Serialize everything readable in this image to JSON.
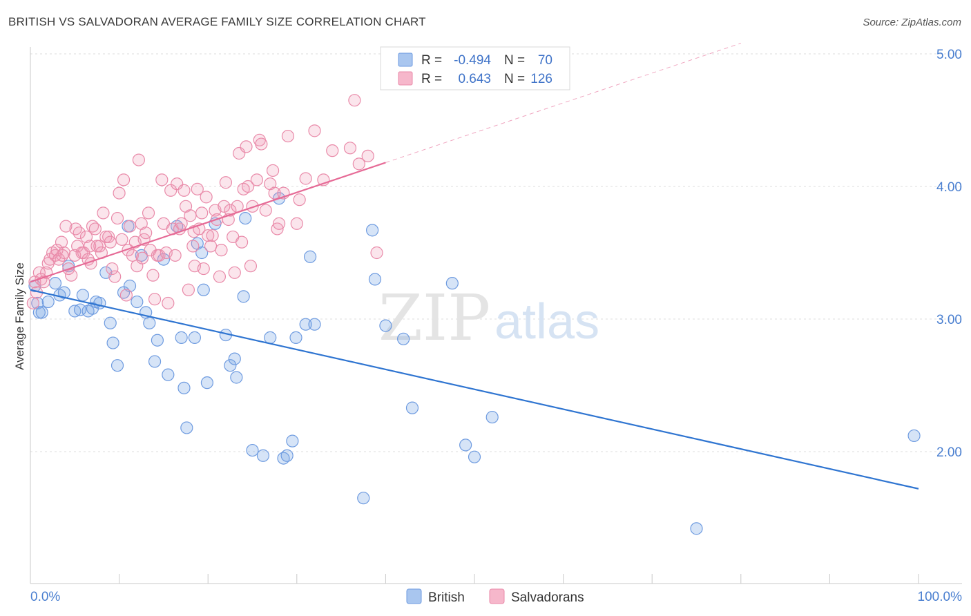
{
  "title": "BRITISH VS SALVADORAN AVERAGE FAMILY SIZE CORRELATION CHART",
  "source": "Source: ZipAtlas.com",
  "watermark": {
    "zip": "ZIP",
    "atlas": "atlas"
  },
  "legend": {
    "r_label": "R =",
    "n_label": "N =",
    "rows": [
      {
        "r": "-0.494",
        "n": "70",
        "color": "#a9c6ef",
        "stroke": "#6e9be0"
      },
      {
        "r": "0.643",
        "n": "126",
        "color": "#f6b7cb",
        "stroke": "#e98aa9"
      }
    ]
  },
  "bottom_legend": [
    {
      "label": "British",
      "color": "#a9c6ef",
      "stroke": "#6e9be0"
    },
    {
      "label": "Salvadorans",
      "color": "#f6b7cb",
      "stroke": "#e98aa9"
    }
  ],
  "colors": {
    "blue_line": "#2f75d1",
    "pink_line": "#e66a96",
    "blue_fill": "rgba(120,164,228,0.30)",
    "blue_stroke": "#6e9be0",
    "pink_fill": "rgba(240,150,180,0.25)",
    "pink_stroke": "#e98aa9",
    "grid": "#dcdcdc"
  },
  "chart_data": {
    "type": "scatter",
    "title": "BRITISH VS SALVADORAN AVERAGE FAMILY SIZE CORRELATION CHART",
    "xlabel": "",
    "ylabel": "Average Family Size",
    "xlim": [
      0,
      100
    ],
    "ylim": [
      1.0,
      5.1
    ],
    "x_tick_labels": [
      "0.0%",
      "100.0%"
    ],
    "y_ticks": [
      2.0,
      3.0,
      4.0,
      5.0
    ],
    "y_tick_labels": [
      "2.00",
      "3.00",
      "4.00",
      "5.00"
    ],
    "grid": true,
    "legend_position": "top-center",
    "series": [
      {
        "name": "British",
        "r": -0.494,
        "n": 70,
        "trend": {
          "x": [
            0,
            100
          ],
          "y": [
            3.22,
            1.72
          ]
        },
        "points": [
          [
            0.5,
            3.25
          ],
          [
            0.8,
            3.12
          ],
          [
            1.0,
            3.05
          ],
          [
            1.3,
            3.05
          ],
          [
            2.0,
            3.13
          ],
          [
            2.8,
            3.27
          ],
          [
            3.3,
            3.18
          ],
          [
            3.8,
            3.2
          ],
          [
            4.3,
            3.4
          ],
          [
            5.0,
            3.06
          ],
          [
            5.6,
            3.07
          ],
          [
            5.9,
            3.18
          ],
          [
            6.5,
            3.06
          ],
          [
            7.0,
            3.08
          ],
          [
            7.4,
            3.13
          ],
          [
            7.8,
            3.12
          ],
          [
            8.5,
            3.35
          ],
          [
            9.0,
            2.97
          ],
          [
            9.3,
            2.82
          ],
          [
            9.8,
            2.65
          ],
          [
            10.5,
            3.2
          ],
          [
            11.0,
            3.7
          ],
          [
            11.2,
            3.25
          ],
          [
            12.0,
            3.13
          ],
          [
            12.5,
            3.48
          ],
          [
            13.0,
            3.05
          ],
          [
            13.4,
            2.97
          ],
          [
            14.0,
            2.68
          ],
          [
            14.3,
            2.84
          ],
          [
            15.0,
            3.45
          ],
          [
            15.5,
            2.58
          ],
          [
            16.5,
            3.7
          ],
          [
            17.0,
            2.86
          ],
          [
            17.3,
            2.48
          ],
          [
            17.6,
            2.18
          ],
          [
            18.5,
            2.86
          ],
          [
            18.8,
            3.57
          ],
          [
            19.3,
            3.5
          ],
          [
            19.5,
            3.22
          ],
          [
            19.9,
            2.52
          ],
          [
            20.8,
            3.72
          ],
          [
            22.0,
            2.88
          ],
          [
            22.5,
            2.65
          ],
          [
            23.0,
            2.7
          ],
          [
            23.2,
            2.56
          ],
          [
            24.0,
            3.17
          ],
          [
            24.2,
            3.76
          ],
          [
            25.0,
            2.01
          ],
          [
            26.2,
            1.97
          ],
          [
            27.0,
            2.86
          ],
          [
            28.0,
            3.91
          ],
          [
            28.5,
            1.95
          ],
          [
            28.9,
            1.97
          ],
          [
            29.5,
            2.08
          ],
          [
            29.9,
            2.86
          ],
          [
            31.0,
            2.96
          ],
          [
            31.5,
            3.47
          ],
          [
            32.0,
            2.96
          ],
          [
            37.5,
            1.65
          ],
          [
            38.5,
            3.67
          ],
          [
            38.8,
            3.3
          ],
          [
            40.0,
            2.95
          ],
          [
            42.0,
            2.85
          ],
          [
            43.0,
            2.33
          ],
          [
            47.5,
            3.27
          ],
          [
            49.0,
            2.05
          ],
          [
            50.0,
            1.96
          ],
          [
            52.0,
            2.26
          ],
          [
            75.0,
            1.42
          ],
          [
            99.5,
            2.12
          ]
        ]
      },
      {
        "name": "Salvadorans",
        "r": 0.643,
        "n": 126,
        "trend": {
          "x": [
            0,
            40
          ],
          "y": [
            3.28,
            4.18
          ]
        },
        "points": [
          [
            0.3,
            3.12
          ],
          [
            0.5,
            3.28
          ],
          [
            0.7,
            3.2
          ],
          [
            1.0,
            3.35
          ],
          [
            1.2,
            3.3
          ],
          [
            1.5,
            3.28
          ],
          [
            1.8,
            3.35
          ],
          [
            2.0,
            3.42
          ],
          [
            2.2,
            3.45
          ],
          [
            2.5,
            3.5
          ],
          [
            2.8,
            3.48
          ],
          [
            3.0,
            3.52
          ],
          [
            3.2,
            3.45
          ],
          [
            3.5,
            3.58
          ],
          [
            3.8,
            3.5
          ],
          [
            4.0,
            3.7
          ],
          [
            4.3,
            3.38
          ],
          [
            4.6,
            3.33
          ],
          [
            5.0,
            3.48
          ],
          [
            5.3,
            3.55
          ],
          [
            5.5,
            3.65
          ],
          [
            5.8,
            3.5
          ],
          [
            6.0,
            3.5
          ],
          [
            6.3,
            3.62
          ],
          [
            6.5,
            3.45
          ],
          [
            6.8,
            3.42
          ],
          [
            7.0,
            3.7
          ],
          [
            7.3,
            3.68
          ],
          [
            7.5,
            3.55
          ],
          [
            7.8,
            3.55
          ],
          [
            8.0,
            3.5
          ],
          [
            8.2,
            3.8
          ],
          [
            8.5,
            3.62
          ],
          [
            8.8,
            3.62
          ],
          [
            9.0,
            3.58
          ],
          [
            9.2,
            3.38
          ],
          [
            9.5,
            3.32
          ],
          [
            9.8,
            3.76
          ],
          [
            10.0,
            3.95
          ],
          [
            10.3,
            3.6
          ],
          [
            10.5,
            4.05
          ],
          [
            10.8,
            3.18
          ],
          [
            11.0,
            3.52
          ],
          [
            11.2,
            3.7
          ],
          [
            11.5,
            3.48
          ],
          [
            11.8,
            3.58
          ],
          [
            12.0,
            3.4
          ],
          [
            12.2,
            4.2
          ],
          [
            12.5,
            3.72
          ],
          [
            12.8,
            3.6
          ],
          [
            13.0,
            3.65
          ],
          [
            13.3,
            3.8
          ],
          [
            13.5,
            3.52
          ],
          [
            13.8,
            3.33
          ],
          [
            14.0,
            3.15
          ],
          [
            14.3,
            3.48
          ],
          [
            14.5,
            3.48
          ],
          [
            14.8,
            4.05
          ],
          [
            15.0,
            3.72
          ],
          [
            15.3,
            3.5
          ],
          [
            15.5,
            3.12
          ],
          [
            15.8,
            3.97
          ],
          [
            16.0,
            3.68
          ],
          [
            16.3,
            3.48
          ],
          [
            16.5,
            4.02
          ],
          [
            16.8,
            3.68
          ],
          [
            17.0,
            3.72
          ],
          [
            17.3,
            3.97
          ],
          [
            17.5,
            3.85
          ],
          [
            17.8,
            3.22
          ],
          [
            18.0,
            3.78
          ],
          [
            18.3,
            3.55
          ],
          [
            18.5,
            3.4
          ],
          [
            18.8,
            3.98
          ],
          [
            19.0,
            3.68
          ],
          [
            19.3,
            3.8
          ],
          [
            19.5,
            3.38
          ],
          [
            19.8,
            3.92
          ],
          [
            20.0,
            3.63
          ],
          [
            20.3,
            3.55
          ],
          [
            20.5,
            3.63
          ],
          [
            20.8,
            3.82
          ],
          [
            21.0,
            3.75
          ],
          [
            21.3,
            3.32
          ],
          [
            21.5,
            3.52
          ],
          [
            21.8,
            3.85
          ],
          [
            22.0,
            4.03
          ],
          [
            22.3,
            3.75
          ],
          [
            22.5,
            3.82
          ],
          [
            22.8,
            3.62
          ],
          [
            23.0,
            3.35
          ],
          [
            23.3,
            3.85
          ],
          [
            23.5,
            4.25
          ],
          [
            23.8,
            3.58
          ],
          [
            24.0,
            3.98
          ],
          [
            24.3,
            4.3
          ],
          [
            24.5,
            4.0
          ],
          [
            24.8,
            3.4
          ],
          [
            25.0,
            3.85
          ],
          [
            25.5,
            4.05
          ],
          [
            25.8,
            4.35
          ],
          [
            26.0,
            4.32
          ],
          [
            26.5,
            3.82
          ],
          [
            27.0,
            4.02
          ],
          [
            27.3,
            4.12
          ],
          [
            27.5,
            3.95
          ],
          [
            27.8,
            3.68
          ],
          [
            28.0,
            3.72
          ],
          [
            28.5,
            3.95
          ],
          [
            29.0,
            4.38
          ],
          [
            30.0,
            3.72
          ],
          [
            30.3,
            3.9
          ],
          [
            31.0,
            4.06
          ],
          [
            32.0,
            4.42
          ],
          [
            33.0,
            4.05
          ],
          [
            34.0,
            4.27
          ],
          [
            36.0,
            4.29
          ],
          [
            36.5,
            4.65
          ],
          [
            37.0,
            4.17
          ],
          [
            38.0,
            4.23
          ],
          [
            39.0,
            3.5
          ],
          [
            3.6,
            3.48
          ],
          [
            5.1,
            3.68
          ],
          [
            6.7,
            3.55
          ],
          [
            12.6,
            3.46
          ],
          [
            18.4,
            3.66
          ]
        ]
      }
    ]
  }
}
